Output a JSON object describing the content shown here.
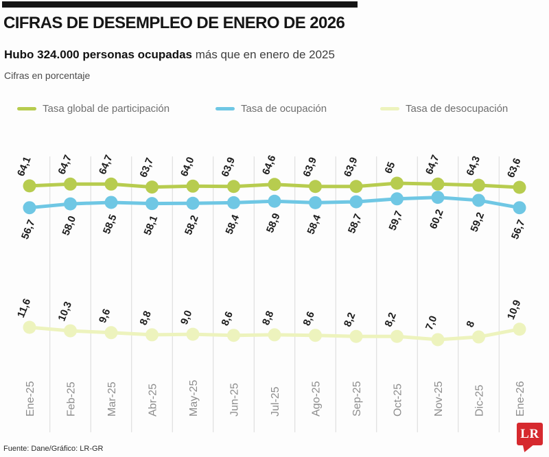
{
  "header": {
    "title": "CIFRAS DE DESEMPLEO DE ENERO DE 2026",
    "subtitle_bold": "Hubo 324.000 personas ocupadas",
    "subtitle_rest": " más que en enero de 2025",
    "note": "Cifras en porcentaje"
  },
  "legend": [
    {
      "label": "Tasa global de participación",
      "color": "#b7cc4f"
    },
    {
      "label": "Tasa de ocupación",
      "color": "#6fc7e4"
    },
    {
      "label": "Tasa de desocupación",
      "color": "#edf3bd"
    }
  ],
  "chart_data": {
    "type": "line",
    "title": "Cifras de desempleo de enero de 2026",
    "xlabel": "",
    "ylabel": "Cifras en porcentaje",
    "grid": "vertical",
    "legend_position": "top",
    "categories": [
      "Ene-25",
      "Feb-25",
      "Mar-25",
      "Abr-25",
      "May-25",
      "Jun-25",
      "Jul-25",
      "Ago-25",
      "Sep-25",
      "Oct-25",
      "Nov-25",
      "Dic-25",
      "Ene-26"
    ],
    "series": [
      {
        "name": "Tasa global de participación",
        "color": "#b7cc4f",
        "label_position": "above",
        "values": [
          64.1,
          64.7,
          64.7,
          63.7,
          64.0,
          63.9,
          64.6,
          63.9,
          63.9,
          65,
          64.7,
          64.3,
          63.6
        ],
        "labels": [
          "64,1",
          "64,7",
          "64,7",
          "63,7",
          "64,0",
          "63,9",
          "64,6",
          "63,9",
          "63,9",
          "65",
          "64,7",
          "64,3",
          "63,6"
        ]
      },
      {
        "name": "Tasa de ocupación",
        "color": "#6fc7e4",
        "label_position": "below",
        "values": [
          56.7,
          58.0,
          58.5,
          58.1,
          58.2,
          58.4,
          58.9,
          58.4,
          58.7,
          59.7,
          60.2,
          59.2,
          56.7
        ],
        "labels": [
          "56,7",
          "58,0",
          "58,5",
          "58,1",
          "58,2",
          "58,4",
          "58,9",
          "58,4",
          "58,7",
          "59,7",
          "60,2",
          "59,2",
          "56,7"
        ]
      },
      {
        "name": "Tasa de desocupación",
        "color": "#edf3bd",
        "label_position": "above",
        "values": [
          11.6,
          10.3,
          9.6,
          8.8,
          9.0,
          8.6,
          8.8,
          8.6,
          8.2,
          8.2,
          7.0,
          8,
          10.9
        ],
        "labels": [
          "11,6",
          "10,3",
          "9,6",
          "8,8",
          "9,0",
          "8,6",
          "8,8",
          "8,6",
          "8,2",
          "8,2",
          "7,0",
          "8",
          "10,9"
        ]
      }
    ]
  },
  "footer": {
    "source": "Fuente: Dane/Gráfico: LR-GR",
    "logo_text": "LR",
    "logo_color": "#d6292e"
  }
}
